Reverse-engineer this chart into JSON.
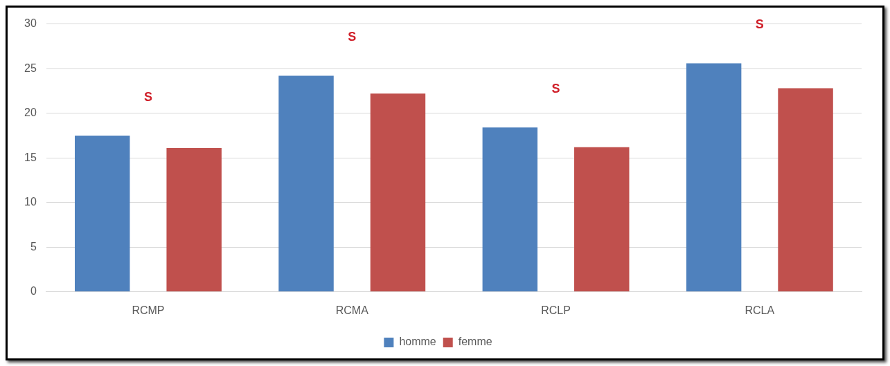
{
  "chart_data": {
    "type": "bar",
    "categories": [
      "RCMP",
      "RCMA",
      "RCLP",
      "RCLA"
    ],
    "series": [
      {
        "name": "homme",
        "color": "#4f81bd",
        "values": [
          17.5,
          24.2,
          18.4,
          25.6
        ]
      },
      {
        "name": "femme",
        "color": "#c0504d",
        "values": [
          16.1,
          22.2,
          16.2,
          22.8
        ]
      }
    ],
    "ylim": [
      0,
      30
    ],
    "yticks": [
      0,
      5,
      10,
      15,
      20,
      25,
      30
    ],
    "grid": "y",
    "legend": "bottom",
    "annotations": [
      "S",
      "S",
      "S",
      "S"
    ]
  }
}
